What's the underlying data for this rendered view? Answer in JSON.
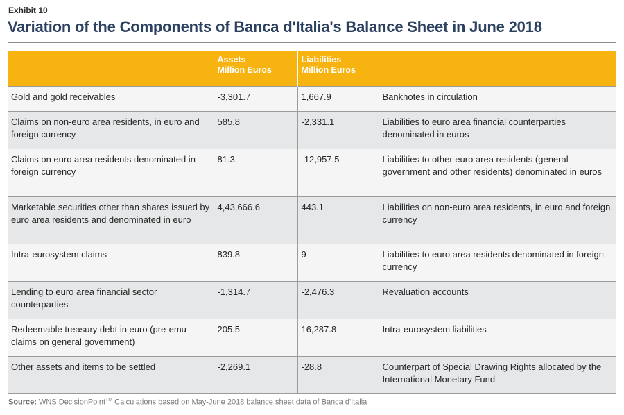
{
  "exhibit_label": "Exhibit 10",
  "title": "Variation of the Components of Banca d'Italia's Balance Sheet in June 2018",
  "source": {
    "label": "Source:",
    "brand": "WNS DecisionPoint",
    "trademark": "TM",
    "text": " Calculations based on May-June 2018 balance sheet data of Banca d'Italia"
  },
  "colors": {
    "header_bg": "#f7b410",
    "title": "#2c4160",
    "row_light": "#f5f5f5",
    "row_dark": "#e6e7e8"
  },
  "chart_data": {
    "type": "table",
    "title": "Variation of the Components of Banca d'Italia's Balance Sheet in June 2018",
    "columns": [
      {
        "line1": "",
        "line2": ""
      },
      {
        "line1": "Assets",
        "line2": "Million Euros"
      },
      {
        "line1": "Liabilities",
        "line2": "Million Euros"
      },
      {
        "line1": "",
        "line2": ""
      }
    ],
    "rows": [
      {
        "asset": "Gold and gold receivables",
        "assets_value": "-3,301.7",
        "liabilities_value": "1,667.9",
        "liability": "Banknotes in circulation"
      },
      {
        "asset": "Claims on non-euro area residents, in euro and foreign currency",
        "assets_value": "585.8",
        "liabilities_value": "-2,331.1",
        "liability": "Liabilities to euro area financial counterparties denominated in euros"
      },
      {
        "asset": "Claims on euro area residents denominated in foreign currency",
        "assets_value": "81.3",
        "liabilities_value": "-12,957.5",
        "liability": "Liabilities to other euro area residents (general government and other residents) denominated in euros"
      },
      {
        "asset": "Marketable securities other than shares issued by euro area residents and denominated in euro",
        "assets_value": "4,43,666.6",
        "liabilities_value": "443.1",
        "liability": "Liabilities on non-euro area residents, in euro and foreign currency"
      },
      {
        "asset": "Intra-eurosystem claims",
        "assets_value": "839.8",
        "liabilities_value": "9",
        "liability": "Liabilities to euro area residents denominated in foreign currency"
      },
      {
        "asset": "Lending to euro area financial sector counterparties",
        "assets_value": "-1,314.7",
        "liabilities_value": "-2,476.3",
        "liability": "Revaluation accounts"
      },
      {
        "asset": "Redeemable treasury debt in euro (pre-emu claims on general government)",
        "assets_value": "205.5",
        "liabilities_value": "16,287.8",
        "liability": "Intra-eurosystem liabilities"
      },
      {
        "asset": "Other assets and items to be settled",
        "assets_value": "-2,269.1",
        "liabilities_value": "-28.8",
        "liability": "Counterpart of Special Drawing Rights allocated by the International Monetary Fund"
      }
    ]
  }
}
